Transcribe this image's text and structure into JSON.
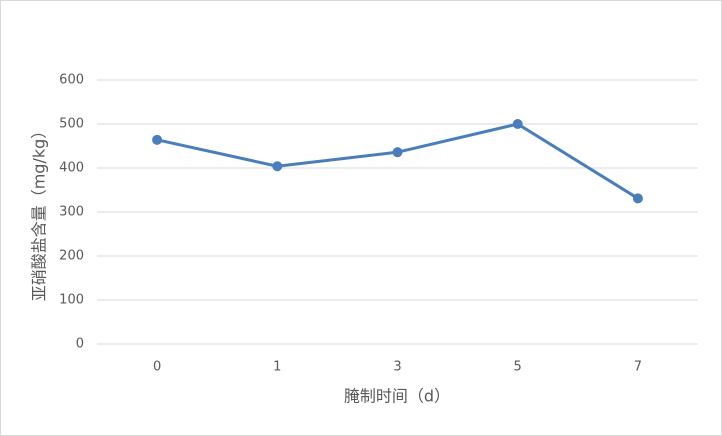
{
  "chart_data": {
    "type": "line",
    "x_label": "腌制时间（d）",
    "y_label": "亚硝酸盐含量（mg/kg）",
    "categories": [
      "0",
      "1",
      "3",
      "5",
      "7"
    ],
    "series": [
      {
        "name": "亚硝酸盐含量",
        "color": "#4a7ebb",
        "values": [
          464,
          404,
          436,
          500,
          331
        ]
      }
    ],
    "ylim": [
      0,
      600
    ],
    "yticks": [
      0,
      100,
      200,
      300,
      400,
      500,
      600
    ],
    "grid": true,
    "legend": false
  }
}
